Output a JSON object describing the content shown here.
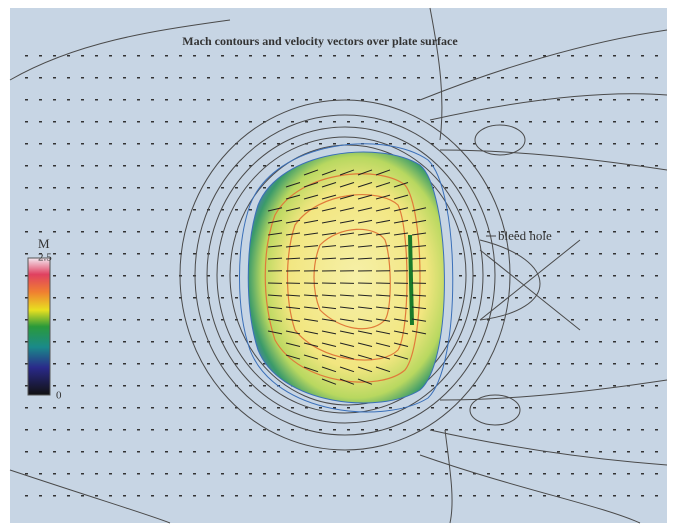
{
  "title": "Mach contours and velocity vectors over plate surface",
  "colorbar": {
    "label": "M",
    "max": 2.5,
    "min": 0
  },
  "annotation": "bleed hole"
}
